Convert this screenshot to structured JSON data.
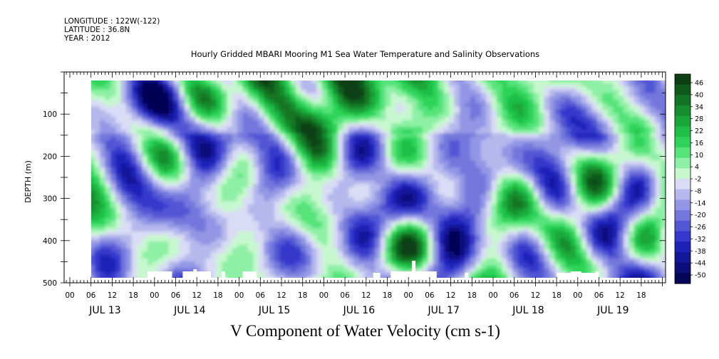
{
  "meta": {
    "longitude": "LONGITUDE : 122W(-122)",
    "latitude": "LATITUDE : 36.8N",
    "year": "YEAR : 2012"
  },
  "chart_data": {
    "type": "heatmap",
    "title": "Hourly Gridded MBARI Mooring M1 Sea Water Temperature and Salinity Observations",
    "xlabel": "V Component of Water Velocity (cm s-1)",
    "ylabel": "DEPTH (m)",
    "ylim": [
      500,
      0
    ],
    "yticks": [
      100,
      200,
      300,
      400,
      500
    ],
    "hour_ticks": [
      "00",
      "06",
      "12",
      "18",
      "00",
      "06",
      "12",
      "18",
      "00",
      "06",
      "12",
      "18",
      "00",
      "06",
      "12",
      "18",
      "00",
      "06",
      "12",
      "18",
      "00",
      "06",
      "12",
      "18",
      "00",
      "06",
      "12",
      "18"
    ],
    "day_labels": [
      "JUL 13",
      "JUL 14",
      "JUL 15",
      "JUL 16",
      "JUL 17",
      "JUL 18",
      "JUL 19"
    ],
    "colorbar": {
      "range": [
        -50,
        50
      ],
      "tick_labels": [
        "46",
        "40",
        "34",
        "28",
        "22",
        "16",
        "10",
        "4",
        "-2",
        "-8",
        "-14",
        "-20",
        "-26",
        "-32",
        "-38",
        "-44",
        "-50"
      ],
      "colors": [
        "#0b3f12",
        "#0f5a1a",
        "#127424",
        "#168d2e",
        "#1aa73a",
        "#1fbf46",
        "#2ed459",
        "#55e37a",
        "#8ef0a5",
        "#c7f7cf",
        "#d9dcf4",
        "#b5b8ec",
        "#9296e4",
        "#7377dc",
        "#5257d4",
        "#3438cb",
        "#1f22b8",
        "#15179a",
        "#0c0e7a",
        "#050655"
      ]
    }
  }
}
